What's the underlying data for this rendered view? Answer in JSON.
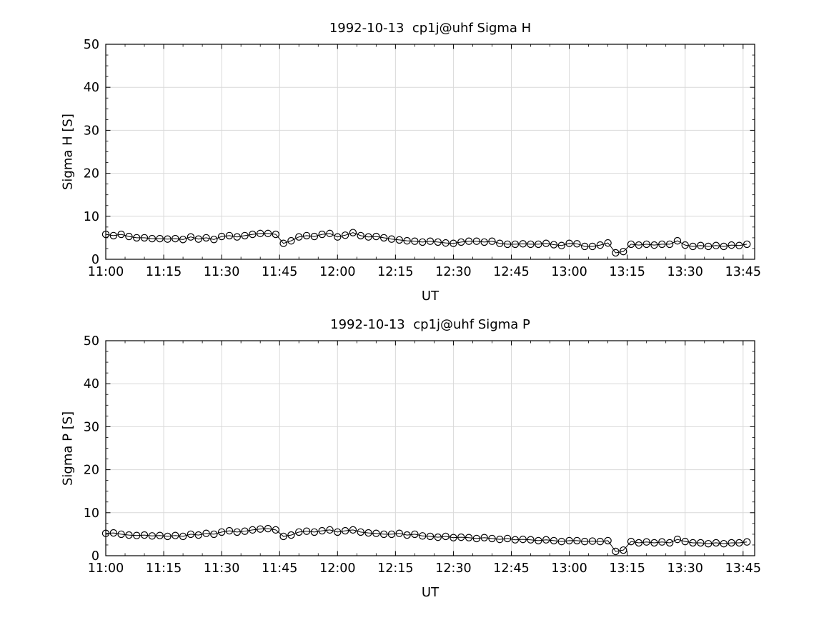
{
  "style": {
    "background": "#ffffff",
    "axis_color": "#000000",
    "grid_color": "#d9d9d9",
    "line_color": "#000000",
    "marker_edge_color": "#000000",
    "text_color": "#000000"
  },
  "chart_data": [
    {
      "type": "line",
      "title": "1992-10-13  cp1j@uhf Sigma H",
      "xlabel": "UT",
      "ylabel": "Sigma H [S]",
      "xlim": [
        0,
        168
      ],
      "ylim": [
        0,
        50
      ],
      "yticks": [
        0,
        10,
        20,
        30,
        40,
        50
      ],
      "x_minor_step": 5,
      "y_minor_step": 2.5,
      "grid": true,
      "legend": "none",
      "marker": "open-circle",
      "xticks": {
        "minutes": [
          0,
          15,
          30,
          45,
          60,
          75,
          90,
          105,
          120,
          135,
          150,
          165
        ],
        "labels": [
          "11:00",
          "11:15",
          "11:30",
          "11:45",
          "12:00",
          "12:15",
          "12:30",
          "12:45",
          "13:00",
          "13:15",
          "13:30",
          "13:45"
        ]
      },
      "x_minutes_after_1100": [
        0,
        2,
        4,
        6,
        8,
        10,
        12,
        14,
        16,
        18,
        20,
        22,
        24,
        26,
        28,
        30,
        32,
        34,
        36,
        38,
        40,
        42,
        44,
        46,
        48,
        50,
        52,
        54,
        56,
        58,
        60,
        62,
        64,
        66,
        68,
        70,
        72,
        74,
        76,
        78,
        80,
        82,
        84,
        86,
        88,
        90,
        92,
        94,
        96,
        98,
        100,
        102,
        104,
        106,
        108,
        110,
        112,
        114,
        116,
        118,
        120,
        122,
        124,
        126,
        128,
        130,
        132,
        134,
        136,
        138,
        140,
        142,
        144,
        146,
        148,
        150,
        152,
        154,
        156,
        158,
        160,
        162,
        164,
        166
      ],
      "values": [
        5.8,
        5.5,
        5.8,
        5.3,
        5.0,
        5.0,
        4.8,
        4.8,
        4.7,
        4.8,
        4.6,
        5.2,
        4.7,
        5.0,
        4.6,
        5.3,
        5.5,
        5.2,
        5.5,
        5.8,
        6.0,
        6.0,
        5.8,
        3.7,
        4.3,
        5.2,
        5.5,
        5.3,
        5.8,
        6.0,
        5.2,
        5.6,
        6.2,
        5.5,
        5.2,
        5.3,
        5.0,
        4.7,
        4.5,
        4.3,
        4.2,
        4.0,
        4.2,
        4.0,
        3.8,
        3.7,
        4.0,
        4.2,
        4.2,
        4.0,
        4.2,
        3.7,
        3.5,
        3.5,
        3.6,
        3.5,
        3.5,
        3.7,
        3.4,
        3.2,
        3.7,
        3.6,
        3.0,
        3.0,
        3.3,
        3.8,
        1.5,
        1.8,
        3.5,
        3.3,
        3.5,
        3.3,
        3.5,
        3.5,
        4.3,
        3.3,
        3.0,
        3.2,
        3.0,
        3.2,
        3.0,
        3.3,
        3.2,
        3.5
      ]
    },
    {
      "type": "line",
      "title": "1992-10-13  cp1j@uhf Sigma P",
      "xlabel": "UT",
      "ylabel": "Sigma P [S]",
      "xlim": [
        0,
        168
      ],
      "ylim": [
        0,
        50
      ],
      "yticks": [
        0,
        10,
        20,
        30,
        40,
        50
      ],
      "x_minor_step": 5,
      "y_minor_step": 2.5,
      "grid": true,
      "legend": "none",
      "marker": "open-circle",
      "xticks": {
        "minutes": [
          0,
          15,
          30,
          45,
          60,
          75,
          90,
          105,
          120,
          135,
          150,
          165
        ],
        "labels": [
          "11:00",
          "11:15",
          "11:30",
          "11:45",
          "12:00",
          "12:15",
          "12:30",
          "12:45",
          "13:00",
          "13:15",
          "13:30",
          "13:45"
        ]
      },
      "x_minutes_after_1100": [
        0,
        2,
        4,
        6,
        8,
        10,
        12,
        14,
        16,
        18,
        20,
        22,
        24,
        26,
        28,
        30,
        32,
        34,
        36,
        38,
        40,
        42,
        44,
        46,
        48,
        50,
        52,
        54,
        56,
        58,
        60,
        62,
        64,
        66,
        68,
        70,
        72,
        74,
        76,
        78,
        80,
        82,
        84,
        86,
        88,
        90,
        92,
        94,
        96,
        98,
        100,
        102,
        104,
        106,
        108,
        110,
        112,
        114,
        116,
        118,
        120,
        122,
        124,
        126,
        128,
        130,
        132,
        134,
        136,
        138,
        140,
        142,
        144,
        146,
        148,
        150,
        152,
        154,
        156,
        158,
        160,
        162,
        164,
        166
      ],
      "values": [
        5.2,
        5.3,
        5.0,
        4.8,
        4.7,
        4.8,
        4.6,
        4.7,
        4.5,
        4.7,
        4.5,
        5.0,
        4.8,
        5.2,
        5.0,
        5.5,
        5.8,
        5.5,
        5.7,
        6.0,
        6.2,
        6.3,
        6.0,
        4.5,
        4.8,
        5.5,
        5.7,
        5.5,
        5.8,
        6.0,
        5.5,
        5.8,
        6.0,
        5.5,
        5.3,
        5.2,
        5.0,
        5.0,
        5.2,
        4.8,
        5.0,
        4.6,
        4.5,
        4.3,
        4.5,
        4.2,
        4.3,
        4.2,
        4.0,
        4.2,
        4.0,
        3.8,
        4.0,
        3.7,
        3.8,
        3.7,
        3.5,
        3.7,
        3.5,
        3.3,
        3.5,
        3.5,
        3.3,
        3.4,
        3.3,
        3.5,
        1.0,
        1.3,
        3.3,
        3.0,
        3.2,
        3.0,
        3.2,
        3.0,
        3.8,
        3.3,
        3.0,
        3.0,
        2.8,
        3.0,
        2.8,
        3.0,
        3.0,
        3.2
      ]
    }
  ]
}
